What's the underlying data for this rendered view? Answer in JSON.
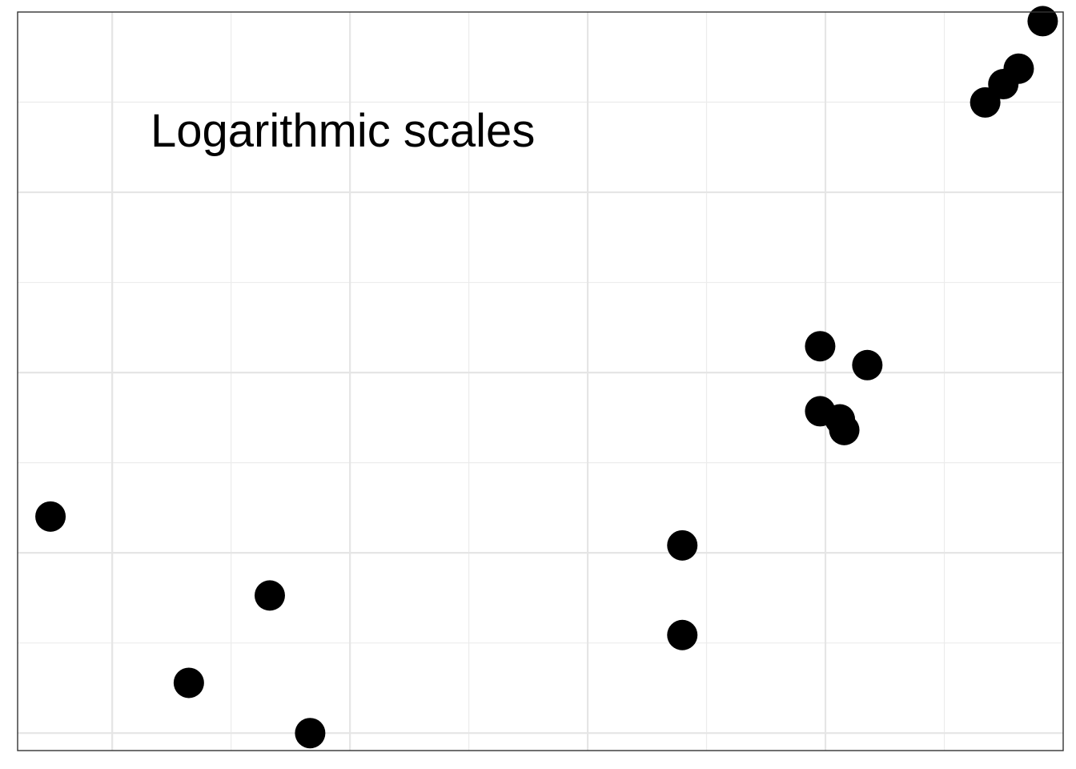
{
  "chart_data": {
    "type": "scatter",
    "title": "",
    "xlabel": "",
    "ylabel": "",
    "x_scale": "log",
    "y_scale": "log",
    "xlim": [
      0.4,
      10000
    ],
    "ylim": [
      0.8,
      10000
    ],
    "grid": true,
    "axis_ticks_shown": false,
    "annotation": "Logarithmic scales",
    "point_color": "#000000",
    "series": [
      {
        "points": [
          {
            "x": 0.55,
            "y": 15.9
          },
          {
            "x": 2.1,
            "y": 1.9
          },
          {
            "x": 4.6,
            "y": 5.8
          },
          {
            "x": 6.8,
            "y": 1.0
          },
          {
            "x": 250,
            "y": 11.0
          },
          {
            "x": 250,
            "y": 3.5
          },
          {
            "x": 950,
            "y": 140
          },
          {
            "x": 950,
            "y": 61
          },
          {
            "x": 1200,
            "y": 48
          },
          {
            "x": 1150,
            "y": 55
          },
          {
            "x": 1500,
            "y": 110
          },
          {
            "x": 4700,
            "y": 3150
          },
          {
            "x": 5600,
            "y": 3980
          },
          {
            "x": 6500,
            "y": 4850
          },
          {
            "x": 8200,
            "y": 8900
          }
        ]
      }
    ]
  }
}
